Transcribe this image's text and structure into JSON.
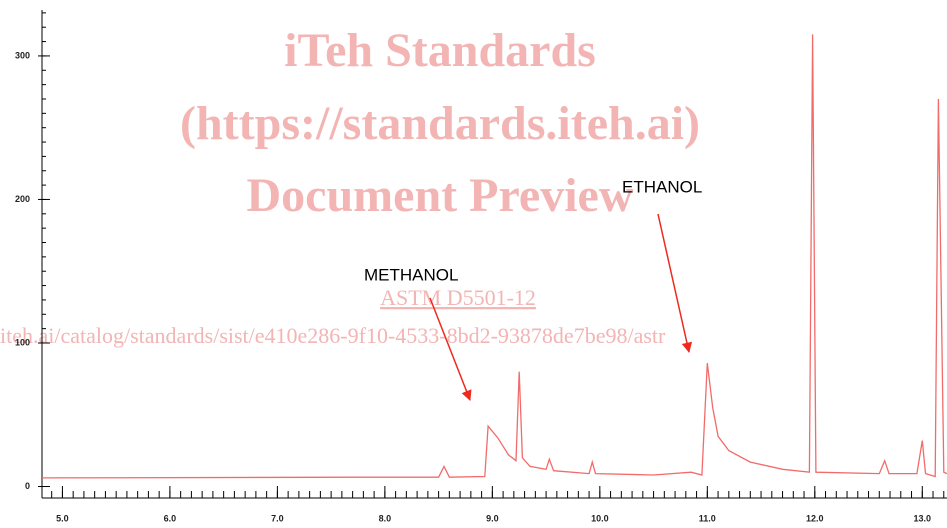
{
  "chart_data": {
    "type": "line",
    "x": [
      4.81,
      7.8,
      8.5,
      8.55,
      8.6,
      8.93,
      8.96,
      9.05,
      9.15,
      9.22,
      9.25,
      9.28,
      9.35,
      9.5,
      9.53,
      9.57,
      9.9,
      9.93,
      9.96,
      10.5,
      10.85,
      10.95,
      11.0,
      11.05,
      11.1,
      11.2,
      11.4,
      11.7,
      11.95,
      11.98,
      12.01,
      12.6,
      12.65,
      12.69,
      12.95,
      13.0,
      13.03,
      13.12,
      13.15,
      13.2,
      13.23
    ],
    "values": [
      6,
      6.5,
      6.5,
      14,
      6.5,
      7,
      42,
      34,
      22,
      18,
      80,
      20,
      14,
      12,
      19,
      11,
      9,
      17,
      9,
      8,
      10,
      8,
      86,
      55,
      35,
      25,
      17,
      12,
      10,
      315,
      10,
      9,
      18,
      9,
      9,
      32,
      9,
      7,
      270,
      10,
      9
    ],
    "color": "#f26b6b",
    "xlim": [
      4.81,
      13.23
    ],
    "ylim": [
      -8,
      332
    ],
    "xticks": [
      {
        "value": 5,
        "label": "5.0"
      },
      {
        "value": 6,
        "label": "6.0"
      },
      {
        "value": 7,
        "label": "7.0"
      },
      {
        "value": 8,
        "label": "8.0"
      },
      {
        "value": 9,
        "label": "9.0"
      },
      {
        "value": 10,
        "label": "10.0"
      },
      {
        "value": 11,
        "label": "11.0"
      },
      {
        "value": 12,
        "label": "12.0"
      },
      {
        "value": 13,
        "label": "13.0"
      }
    ],
    "yticks": [
      0,
      100,
      200,
      300
    ],
    "annotations": [
      "METHANOL",
      "ETHANOL"
    ]
  },
  "watermark": {
    "lines": [
      "iTeh Standards",
      "(https://standards.iteh.ai)",
      "Document Preview"
    ],
    "document": "ASTM D5501-12",
    "url": "iteh.ai/catalog/standards/sist/e410e286-9f10-4533-8bd2-93878de7be98/astr"
  }
}
